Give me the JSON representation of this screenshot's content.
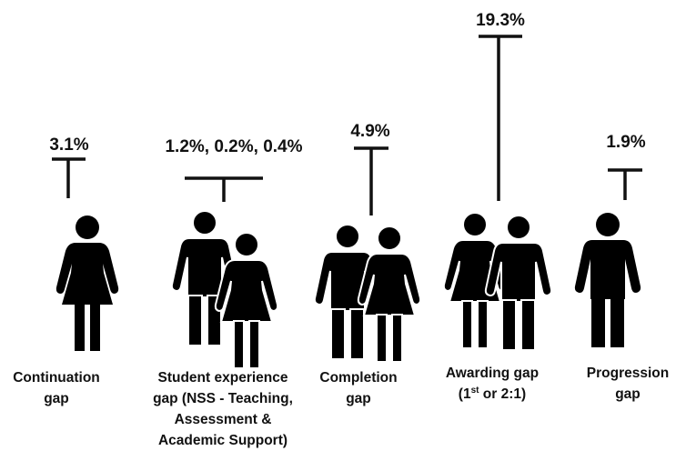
{
  "items": [
    {
      "value": "3.1%",
      "label": [
        "Continuation",
        "gap"
      ]
    },
    {
      "value": "1.2%, 0.2%, 0.4%",
      "label": [
        "Student experience",
        "gap (NSS - Teaching,",
        "Assessment &",
        "Academic Support)"
      ]
    },
    {
      "value": "4.9%",
      "label": [
        "Completion",
        "gap"
      ]
    },
    {
      "value": "19.3%",
      "label": [
        "Awarding gap",
        "(1",
        "st",
        " or 2:1)"
      ]
    },
    {
      "value": "1.9%",
      "label": [
        "Progression",
        "gap"
      ]
    }
  ]
}
